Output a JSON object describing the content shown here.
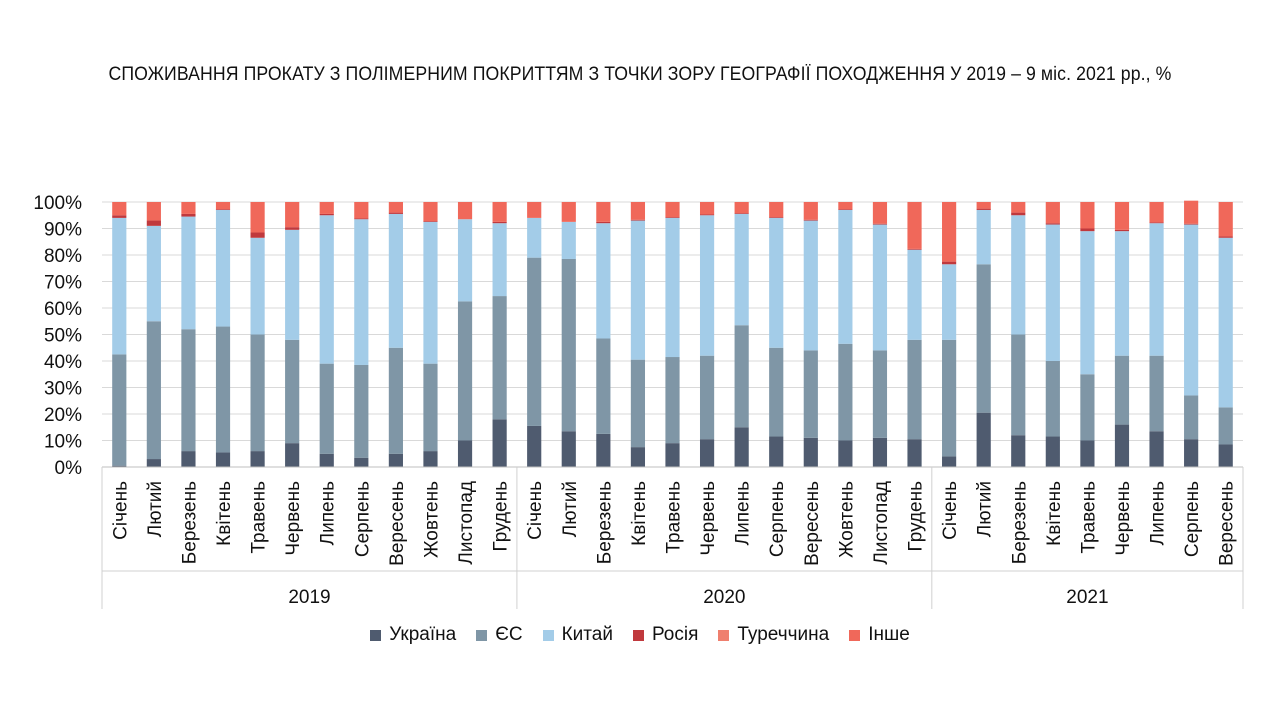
{
  "chart_data": {
    "type": "bar",
    "stacked": true,
    "percent": true,
    "title": "СПОЖИВАННЯ ПРОКАТУ З ПОЛІМЕРНИМ ПОКРИТТЯМ З ТОЧКИ ЗОРУ ГЕОГРАФІЇ ПОХОДЖЕННЯ У 2019 – 9 міс. 2021 рр., %",
    "ylim": [
      0,
      100
    ],
    "yticks": [
      "0%",
      "10%",
      "20%",
      "30%",
      "40%",
      "50%",
      "60%",
      "70%",
      "80%",
      "90%",
      "100%"
    ],
    "grid": true,
    "legend_position": "bottom",
    "groups": [
      {
        "label": "2019",
        "categories": [
          "Січень",
          "Лютий",
          "Березень",
          "Квітень",
          "Травень",
          "Червень",
          "Липень",
          "Серпень",
          "Вересень",
          "Жовтень",
          "Листопад",
          "Грудень"
        ]
      },
      {
        "label": "2020",
        "categories": [
          "Січень",
          "Лютий",
          "Березень",
          "Квітень",
          "Травень",
          "Червень",
          "Липень",
          "Серпень",
          "Вересень",
          "Жовтень",
          "Листопад",
          "Грудень"
        ]
      },
      {
        "label": "2021",
        "categories": [
          "Січень",
          "Лютий",
          "Березень",
          "Квітень",
          "Травень",
          "Червень",
          "Липень",
          "Серпень",
          "Вересень"
        ]
      }
    ],
    "series": [
      {
        "name": "Україна",
        "color": "#4f5b6f",
        "values": [
          0.5,
          3,
          6,
          5.5,
          6,
          9,
          5,
          3.5,
          5,
          6,
          10,
          18,
          15.5,
          13.5,
          12.5,
          7.5,
          9,
          10.5,
          15,
          11.5,
          11,
          10,
          11,
          10.5,
          4,
          20.5,
          12,
          11.5,
          10,
          16,
          13.5,
          10.5,
          8.5
        ]
      },
      {
        "name": "ЄС",
        "color": "#7f96a6",
        "values": [
          42,
          52,
          46,
          47.5,
          44,
          39,
          34,
          35,
          40,
          33,
          52.5,
          46.5,
          63.5,
          65,
          36,
          33,
          32.5,
          31.5,
          38.5,
          33.5,
          33,
          36.5,
          33,
          37.5,
          44,
          56,
          38,
          28.5,
          25,
          26,
          28.5,
          16.5,
          14
        ]
      },
      {
        "name": "Китай",
        "color": "#a3cce8",
        "values": [
          51.5,
          36,
          42.5,
          44,
          36.5,
          41.5,
          56,
          55,
          50.5,
          53.5,
          31,
          27.5,
          15,
          14,
          43.5,
          52.5,
          52.5,
          53,
          42,
          49,
          49,
          50.5,
          47.5,
          34,
          28.5,
          20.5,
          45,
          51.5,
          54,
          47,
          50,
          64.5,
          64
        ]
      },
      {
        "name": "Росія",
        "color": "#c0393d",
        "values": [
          1,
          2,
          1,
          0.3,
          2,
          1,
          0.5,
          0.3,
          0.5,
          0.3,
          0,
          0.5,
          0,
          0,
          0.5,
          0.3,
          0.3,
          0.3,
          0.3,
          0.3,
          0.3,
          0.3,
          0.3,
          0.3,
          1,
          0.5,
          1,
          0.5,
          1,
          0.5,
          0.3,
          0.3,
          0.5
        ]
      },
      {
        "name": "Туреччина",
        "color": "#ef7f6e",
        "values": [
          0,
          0,
          0,
          0,
          0,
          0,
          0,
          0,
          0,
          0,
          0,
          0,
          0,
          0,
          0,
          0,
          0,
          0,
          0,
          0,
          0,
          0,
          0,
          0,
          0,
          0,
          0,
          0,
          0,
          0,
          0,
          0,
          0
        ]
      },
      {
        "name": "Інше",
        "color": "#f0685a",
        "values": [
          5,
          7,
          4.5,
          2.7,
          11.5,
          9.5,
          4.5,
          6.2,
          4,
          7.2,
          6.5,
          7.5,
          6,
          7.5,
          7.5,
          6.7,
          5.7,
          4.7,
          4.2,
          5.7,
          6.7,
          2.7,
          8.2,
          17.7,
          22.5,
          2.5,
          4,
          8,
          10,
          10.5,
          7.7,
          8.7,
          13
        ]
      }
    ]
  }
}
